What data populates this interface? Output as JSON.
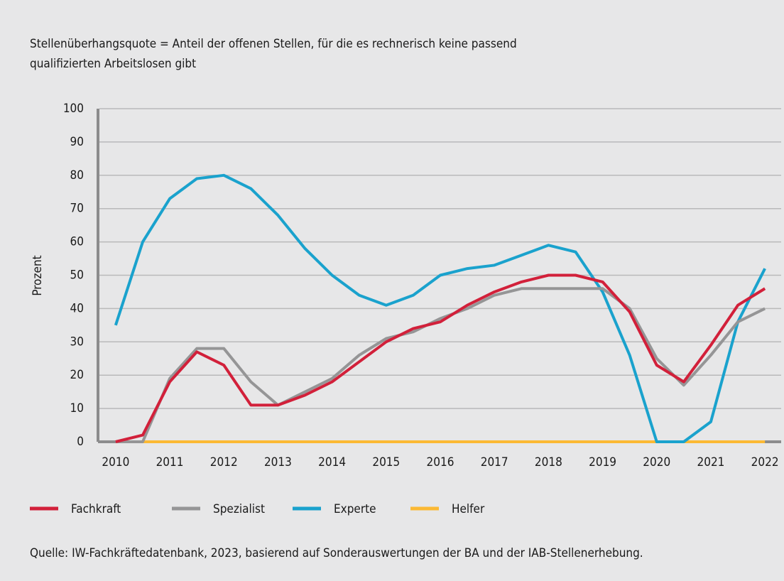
{
  "chart_data": {
    "type": "line",
    "title": [
      "Stellenüberhangsquote = Anteil der offenen Stellen, für die es rechnerisch keine passend",
      "qualifizierten Arbeitslosen gibt"
    ],
    "y_label": "Prozent",
    "source": "Quelle: IW-Fachkräftedatenbank, 2023, basierend auf Sonderauswertungen der BA und der IAB-Stellenerhebung.",
    "x": [
      2010,
      2010.5,
      2011,
      2011.5,
      2012,
      2012.5,
      2013,
      2013.5,
      2014,
      2014.5,
      2015,
      2015.5,
      2016,
      2016.5,
      2017,
      2017.5,
      2018,
      2018.5,
      2019,
      2019.5,
      2020,
      2020.5,
      2021,
      2021.5,
      2022
    ],
    "xlim": [
      2009.7,
      2022.3
    ],
    "xticks": [
      2010,
      2011,
      2012,
      2013,
      2014,
      2015,
      2016,
      2017,
      2018,
      2019,
      2020,
      2021,
      2022
    ],
    "ylim": [
      0,
      100
    ],
    "yticks": [
      0,
      10,
      20,
      30,
      40,
      50,
      60,
      70,
      80,
      90,
      100
    ],
    "grid": true,
    "legend": "bottom",
    "series": [
      {
        "name": "Fachkraft",
        "color": "#d2203a",
        "values": [
          0,
          2,
          18,
          27,
          23,
          11,
          11,
          14,
          18,
          24,
          30,
          34,
          36,
          41,
          45,
          48,
          50,
          50,
          48,
          39,
          23,
          18,
          29,
          41,
          46
        ]
      },
      {
        "name": "Spezialist",
        "color": "#959596",
        "values": [
          0,
          0,
          19,
          28,
          28,
          18,
          11,
          15,
          19,
          26,
          31,
          33,
          37,
          40,
          44,
          46,
          46,
          46,
          46,
          40,
          25,
          17,
          26,
          36,
          40
        ]
      },
      {
        "name": "Experte",
        "color": "#1aa2cd",
        "values": [
          35,
          60,
          73,
          79,
          80,
          76,
          68,
          58,
          50,
          44,
          41,
          44,
          50,
          52,
          53,
          56,
          59,
          57,
          45,
          26,
          0,
          0,
          6,
          36,
          52
        ]
      },
      {
        "name": "Helfer",
        "color": "#fbb934",
        "values": [
          null,
          0,
          0,
          0,
          0,
          0,
          0,
          0,
          0,
          0,
          0,
          0,
          0,
          0,
          0,
          0,
          0,
          0,
          0,
          0,
          0,
          0,
          0,
          0,
          0
        ]
      }
    ]
  }
}
